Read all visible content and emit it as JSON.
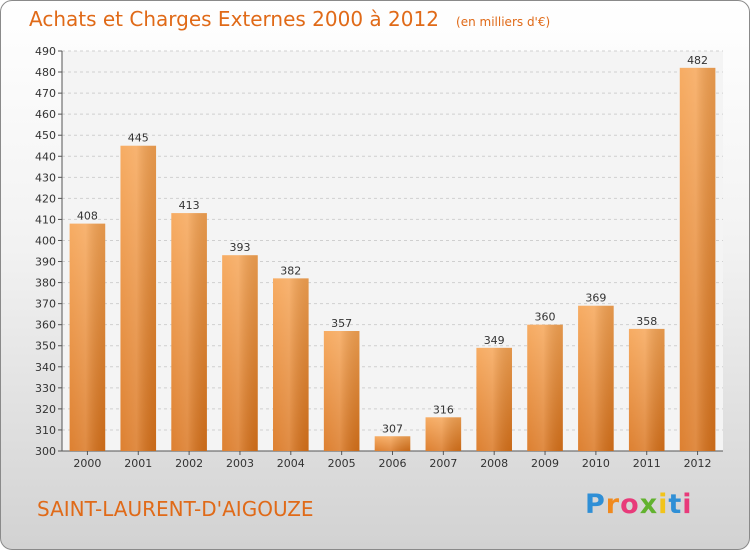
{
  "title": "Achats et Charges Externes 2000 à 2012",
  "unit": "(en milliers d'€)",
  "commune": "SAINT-LAURENT-D'AIGOUZE",
  "brand": {
    "letters": [
      "P",
      "r",
      "o",
      "x",
      "i",
      "t",
      "i"
    ],
    "colors": [
      "#2f8fd6",
      "#f08a1e",
      "#e83a7a",
      "#62b22f",
      "#f2c41a",
      "#2f8fd6",
      "#e83a7a"
    ]
  },
  "colors": {
    "bar": "#f29a44",
    "bar_dark": "#d86f16",
    "accent": "#e06a18"
  },
  "chart_data": {
    "type": "bar",
    "categories": [
      "2000",
      "2001",
      "2002",
      "2003",
      "2004",
      "2005",
      "2006",
      "2007",
      "2008",
      "2009",
      "2010",
      "2011",
      "2012"
    ],
    "values": [
      408,
      445,
      413,
      393,
      382,
      357,
      307,
      316,
      349,
      360,
      369,
      358,
      482
    ],
    "ylim": [
      300,
      490
    ],
    "ytick_step": 10,
    "grid": true,
    "xlabel": "",
    "ylabel": ""
  }
}
